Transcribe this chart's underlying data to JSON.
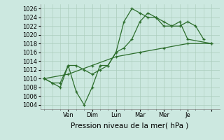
{
  "xlabel": "Pression niveau de la mer( hPa )",
  "bg_color": "#cce8e0",
  "grid_color": "#aaccbb",
  "line_color": "#2d6e2d",
  "ylim": [
    1003,
    1027
  ],
  "yticks": [
    1004,
    1006,
    1008,
    1010,
    1012,
    1014,
    1016,
    1018,
    1020,
    1022,
    1024,
    1026
  ],
  "xtick_positions": [
    3,
    6,
    9,
    12,
    15,
    18,
    21
  ],
  "xtick_labels": [
    "Ven",
    "Dim",
    "Lun",
    "Mar",
    "Mer",
    "Je",
    ""
  ],
  "xlim": [
    -0.5,
    22
  ],
  "series": [
    {
      "x": [
        0,
        1,
        2,
        3,
        4,
        5,
        6,
        7,
        8,
        9,
        10,
        11,
        12,
        13,
        14,
        15,
        16,
        17,
        18,
        19,
        20
      ],
      "y": [
        1010,
        1009,
        1009,
        1013,
        1013,
        1012,
        1011,
        1012,
        1013,
        1016,
        1017,
        1019,
        1023,
        1025,
        1024,
        1023,
        1022,
        1022,
        1023,
        1022,
        1019
      ]
    },
    {
      "x": [
        0,
        1,
        2,
        3,
        4,
        5,
        6,
        7,
        8,
        9,
        10,
        11,
        12,
        13,
        14,
        15,
        16,
        17,
        18,
        21
      ],
      "y": [
        1010,
        1009,
        1008,
        1013,
        1007,
        1004,
        1008,
        1013,
        1013,
        1016,
        1023,
        1026,
        1025,
        1024,
        1024,
        1022,
        1022,
        1023,
        1019,
        1018
      ]
    },
    {
      "x": [
        0,
        3,
        6,
        9,
        12,
        15,
        18,
        21
      ],
      "y": [
        1010,
        1011,
        1013,
        1015,
        1016,
        1017,
        1018,
        1018
      ]
    }
  ],
  "ylabel_fontsize": 6.5,
  "xlabel_fontsize": 7.5,
  "tick_fontsize": 6.0
}
